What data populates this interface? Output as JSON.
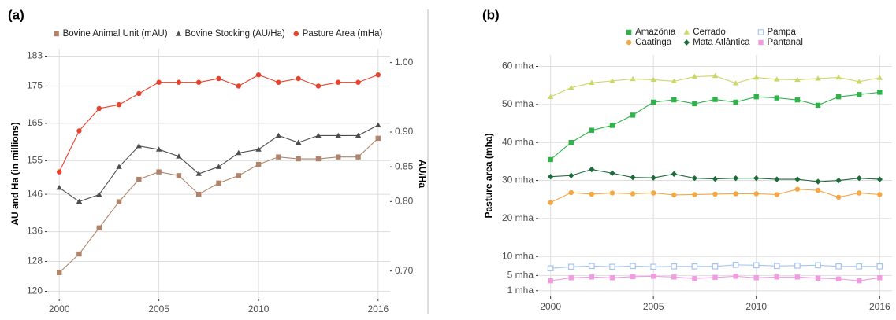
{
  "chart_data": [
    {
      "type": "line",
      "label": "(a)",
      "y_label": "AU and Ha (in millions)",
      "y2_label": "AU/Ha",
      "x": [
        2000,
        2001,
        2002,
        2003,
        2004,
        2005,
        2006,
        2007,
        2008,
        2009,
        2010,
        2011,
        2012,
        2013,
        2014,
        2015,
        2016
      ],
      "xlim": [
        1999.4,
        2016.6
      ],
      "xticks": [
        2000,
        2005,
        2010,
        2016
      ],
      "ylim": [
        118,
        185
      ],
      "yticks": [
        120,
        128,
        136,
        146,
        155,
        165,
        175,
        183
      ],
      "y2lim": [
        0.66,
        1.02
      ],
      "y2ticks": [
        {
          "value": 0.7,
          "label": "0.70"
        },
        {
          "value": 0.8,
          "label": "0.80"
        },
        {
          "value": 0.85,
          "label": "0.85"
        },
        {
          "value": 0.9,
          "label": "0.90"
        },
        {
          "value": 1,
          "label": "1.00"
        }
      ],
      "grid": true,
      "legend": "top",
      "series": [
        {
          "name": "Bovine Animal Unit (mAU)",
          "color": "#b0846a",
          "marker": "square",
          "values": [
            125,
            130,
            137,
            144,
            150,
            152,
            151,
            146,
            149,
            151,
            154,
            156,
            155.5,
            155.5,
            156,
            156,
            161
          ]
        },
        {
          "name": "Bovine Stocking (AU/Ha)",
          "color": "#4d4d4d",
          "marker": "triangle",
          "axis": "y2",
          "values": [
            0.82,
            0.8,
            0.81,
            0.85,
            0.88,
            0.875,
            0.865,
            0.84,
            0.85,
            0.87,
            0.875,
            0.895,
            0.885,
            0.895,
            0.895,
            0.895,
            0.91
          ]
        },
        {
          "name": "Pasture Area (mHa)",
          "color": "#e8412c",
          "marker": "circle",
          "values": [
            152,
            163,
            169,
            170,
            173,
            176,
            176,
            176,
            177,
            175,
            178,
            176,
            177,
            175,
            176,
            176,
            178
          ]
        }
      ]
    },
    {
      "type": "line",
      "label": "(b)",
      "y_label": "Pasture area (mha)",
      "x": [
        2000,
        2001,
        2002,
        2003,
        2004,
        2005,
        2006,
        2007,
        2008,
        2009,
        2010,
        2011,
        2012,
        2013,
        2014,
        2015,
        2016
      ],
      "xlim": [
        1999.4,
        2016.6
      ],
      "xticks": [
        2000,
        2005,
        2010,
        2016
      ],
      "ylim": [
        -0.5,
        63
      ],
      "yticks": [
        {
          "value": 1,
          "label": "1 mha"
        },
        {
          "value": 5,
          "label": "5 mha"
        },
        {
          "value": 10,
          "label": "10 mha"
        },
        {
          "value": 20,
          "label": "20 mha"
        },
        {
          "value": 30,
          "label": "30 mha"
        },
        {
          "value": 40,
          "label": "40 mha"
        },
        {
          "value": 50,
          "label": "50 mha"
        },
        {
          "value": 60,
          "label": "60 mha"
        }
      ],
      "grid": true,
      "legend": "top",
      "series": [
        {
          "name": "Amazônia",
          "color": "#2db34a",
          "marker": "square",
          "values": [
            35.5,
            40,
            43.2,
            44.5,
            47.2,
            50.6,
            51.2,
            50.2,
            51.3,
            50.6,
            52,
            51.7,
            51.2,
            49.8,
            52,
            52.6,
            53.2
          ]
        },
        {
          "name": "Caatinga",
          "color": "#f5a742",
          "marker": "circle",
          "values": [
            24.2,
            26.8,
            26.4,
            26.7,
            26.5,
            26.7,
            26.2,
            26.3,
            26.4,
            26.5,
            26.5,
            26.3,
            27.7,
            27.4,
            25.6,
            26.7,
            26.3
          ]
        },
        {
          "name": "Cerrado",
          "color": "#cdd66b",
          "marker": "triangle",
          "values": [
            52,
            54.4,
            55.7,
            56.2,
            56.7,
            56.5,
            56.1,
            57.3,
            57.5,
            55.6,
            57.1,
            56.6,
            56.5,
            56.8,
            57.1,
            56,
            57
          ]
        },
        {
          "name": "Mata Atlântica",
          "color": "#1f6b3a",
          "marker": "diamond",
          "values": [
            31,
            31.3,
            32.9,
            31.9,
            30.8,
            30.7,
            31.7,
            30.6,
            30.4,
            30.6,
            30.6,
            30.3,
            30.3,
            29.7,
            30,
            30.6,
            30.3
          ]
        },
        {
          "name": "Pampa",
          "color": "#a5c3f5",
          "marker": "square-open",
          "values": [
            6.9,
            7.3,
            7.5,
            7.3,
            7.5,
            7.3,
            7.4,
            7.4,
            7.4,
            7.8,
            7.7,
            7.5,
            7.6,
            7.7,
            7.4,
            7.4,
            7.4
          ]
        },
        {
          "name": "Pantanal",
          "color": "#f29be0",
          "marker": "square",
          "values": [
            3.6,
            4.4,
            4.6,
            4.4,
            4.7,
            4.8,
            4.6,
            4.2,
            4.5,
            4.8,
            4.4,
            4.6,
            4.6,
            4.3,
            4.1,
            3.6,
            4.4
          ]
        }
      ]
    }
  ]
}
